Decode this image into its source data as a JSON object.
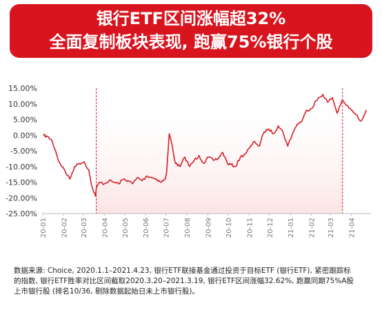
{
  "banner": {
    "line1": "银行ETF区间涨幅超32%",
    "line2": "全面复制板块表现, 跑赢75%银行个股"
  },
  "footnote": {
    "line1": "数据来源: Choice, 2020.1.1–2021.4.23, 银行ETF联接基金通过投资于目标ETF (银行ETF), 紧密跟踪标",
    "line2": "的指数, 银行ETF胜率对比区间截取2020.3.20–2021.3.19, 银行ETF区间涨幅32.62%, 跑赢同期75%A股",
    "line3": "上市银行股 (排名10/36, 剔除数据起始日未上市银行股)。"
  },
  "colors": {
    "brand": "#d8141f",
    "line": "#d21f27",
    "shade": "#fbe4e4"
  },
  "chart_data": {
    "type": "line",
    "ylim": [
      -25,
      15
    ],
    "y_ticks": [
      "15.00%",
      "10.00%",
      "5.00%",
      "0.00%",
      "-5.00%",
      "-10.00%",
      "-15.00%",
      "-20.00%",
      "-25.00%"
    ],
    "y_tick_values": [
      15,
      10,
      5,
      0,
      -5,
      -10,
      -15,
      -20,
      -25
    ],
    "x_ticks": [
      "20-01",
      "20-02",
      "20-03",
      "20-04",
      "20-05",
      "20-06",
      "20-07",
      "20-08",
      "20-09",
      "20-10",
      "20-11",
      "20-12",
      "21-01",
      "21-02",
      "21-03",
      "21-04"
    ],
    "highlight_range": [
      "2020-03-20",
      "2021-03-19"
    ],
    "grid": false,
    "series": [
      {
        "x": [
          "2020-01-02",
          "2020-01-08",
          "2020-01-14",
          "2020-01-20",
          "2020-01-24",
          "2020-02-03",
          "2020-02-10",
          "2020-02-17",
          "2020-02-24",
          "2020-03-02",
          "2020-03-09",
          "2020-03-13",
          "2020-03-19",
          "2020-03-20",
          "2020-03-25",
          "2020-04-01",
          "2020-04-08",
          "2020-04-15",
          "2020-04-22",
          "2020-04-29",
          "2020-05-06",
          "2020-05-13",
          "2020-05-20",
          "2020-05-27",
          "2020-06-03",
          "2020-06-10",
          "2020-06-17",
          "2020-06-24",
          "2020-06-30",
          "2020-07-02",
          "2020-07-06",
          "2020-07-10",
          "2020-07-15",
          "2020-07-22",
          "2020-07-29",
          "2020-08-05",
          "2020-08-12",
          "2020-08-19",
          "2020-08-26",
          "2020-09-02",
          "2020-09-09",
          "2020-09-16",
          "2020-09-23",
          "2020-09-30",
          "2020-10-12",
          "2020-10-19",
          "2020-10-26",
          "2020-11-02",
          "2020-11-09",
          "2020-11-16",
          "2020-11-23",
          "2020-11-30",
          "2020-12-07",
          "2020-12-14",
          "2020-12-21",
          "2020-12-28",
          "2021-01-04",
          "2021-01-11",
          "2021-01-18",
          "2021-01-25",
          "2021-02-01",
          "2021-02-08",
          "2021-02-18",
          "2021-02-25",
          "2021-03-04",
          "2021-03-11",
          "2021-03-18",
          "2021-03-25",
          "2021-04-01",
          "2021-04-08",
          "2021-04-15",
          "2021-04-20",
          "2021-04-23"
        ],
        "y": [
          0,
          -0.5,
          -1.5,
          -5,
          -8,
          -11.5,
          -14,
          -10,
          -9,
          -8.5,
          -11,
          -16,
          -19.5,
          -17,
          -15,
          -15.5,
          -14.5,
          -15,
          -15.5,
          -14,
          -14.5,
          -15.5,
          -13.5,
          -14.5,
          -13,
          -13.5,
          -14,
          -15,
          -14,
          -12,
          0.5,
          -3,
          -9,
          -10,
          -7,
          -10,
          -8,
          -6.5,
          -9,
          -7,
          -8,
          -7.5,
          -5.5,
          -9,
          -10,
          -7,
          -6,
          -4,
          -2,
          -3.5,
          1,
          2,
          0.5,
          3,
          1,
          -3.5,
          0.5,
          3.5,
          4.5,
          8,
          8.5,
          11,
          13,
          10.5,
          12,
          7,
          11,
          9.5,
          8,
          6.5,
          4.5,
          6.5,
          8
        ]
      }
    ]
  }
}
